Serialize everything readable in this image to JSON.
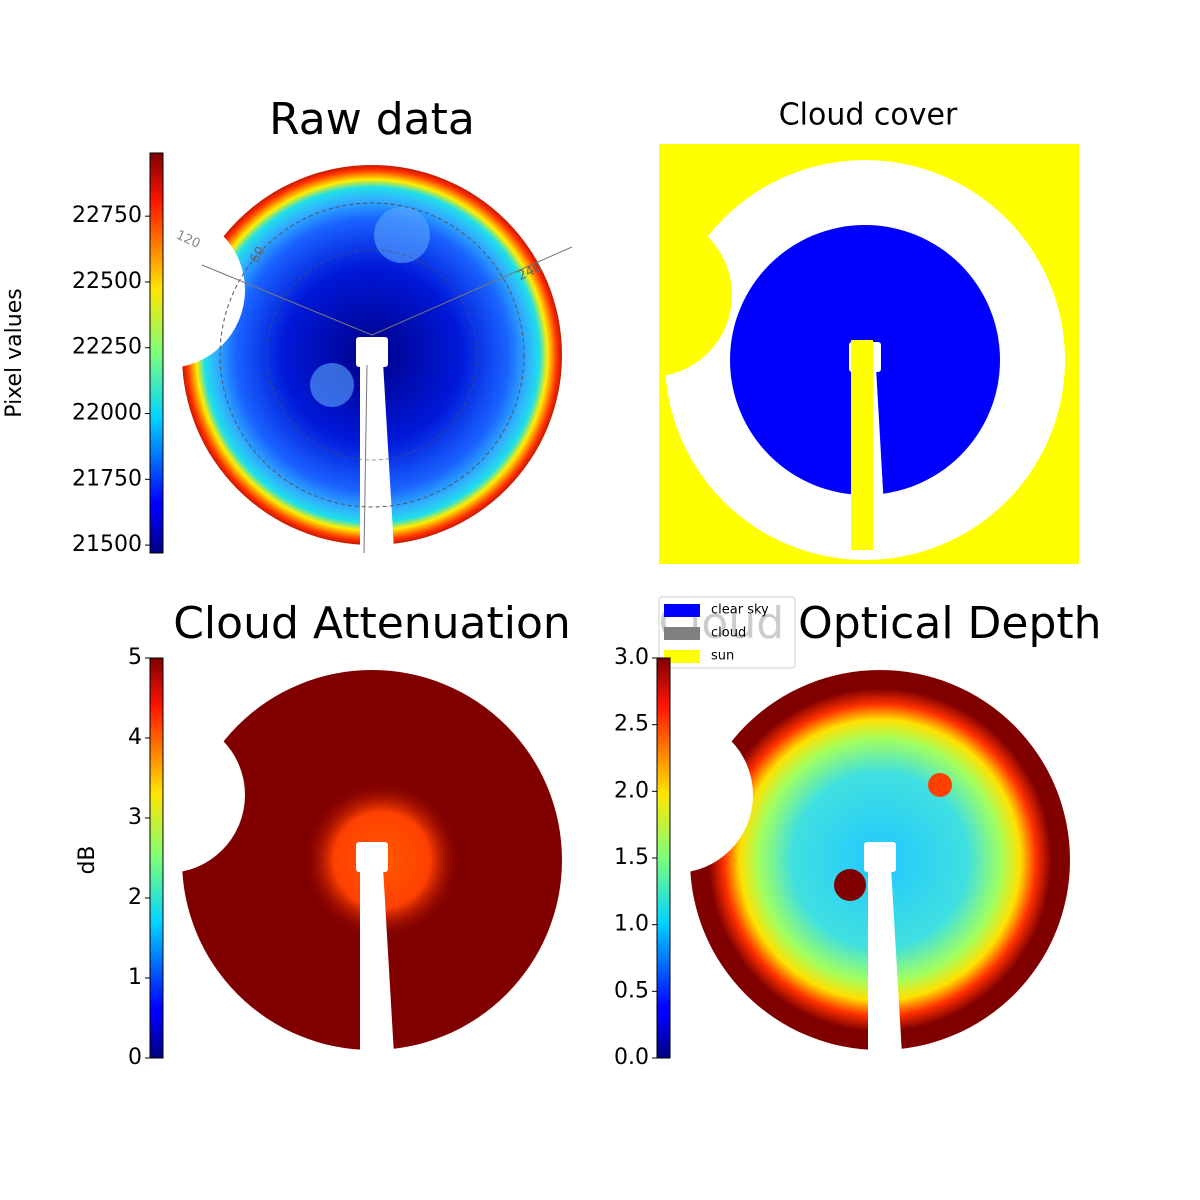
{
  "chart_data": [
    {
      "type": "image",
      "title": "Raw data",
      "colorbar_label": "Pixel values",
      "colormap": "jet",
      "ylim": [
        21470,
        22990
      ],
      "yticks": [
        21500,
        21750,
        22000,
        22250,
        22500,
        22750
      ],
      "annotations": [
        "120",
        "60",
        "240"
      ]
    },
    {
      "type": "image",
      "title": "Cloud cover",
      "legend": {
        "labels": [
          "clear sky",
          "cloud",
          "sun"
        ],
        "colors": [
          "#0000ff",
          "#808080",
          "#ffff00"
        ]
      }
    },
    {
      "type": "image",
      "title": "Cloud Attenuation",
      "colorbar_label": "dB",
      "colormap": "jet",
      "ylim": [
        0,
        5
      ],
      "yticks": [
        0,
        1,
        2,
        3,
        4,
        5
      ]
    },
    {
      "type": "image",
      "title": "Cloud Optical Depth",
      "colormap": "jet",
      "ylim": [
        0,
        3
      ],
      "yticks": [
        {
          "value": 0,
          "label": "0.0"
        },
        0.5,
        {
          "value": 1,
          "label": "1.0"
        },
        1.5,
        {
          "value": 2,
          "label": "2.0"
        },
        2.5,
        {
          "value": 3,
          "label": "3.0"
        }
      ]
    }
  ]
}
